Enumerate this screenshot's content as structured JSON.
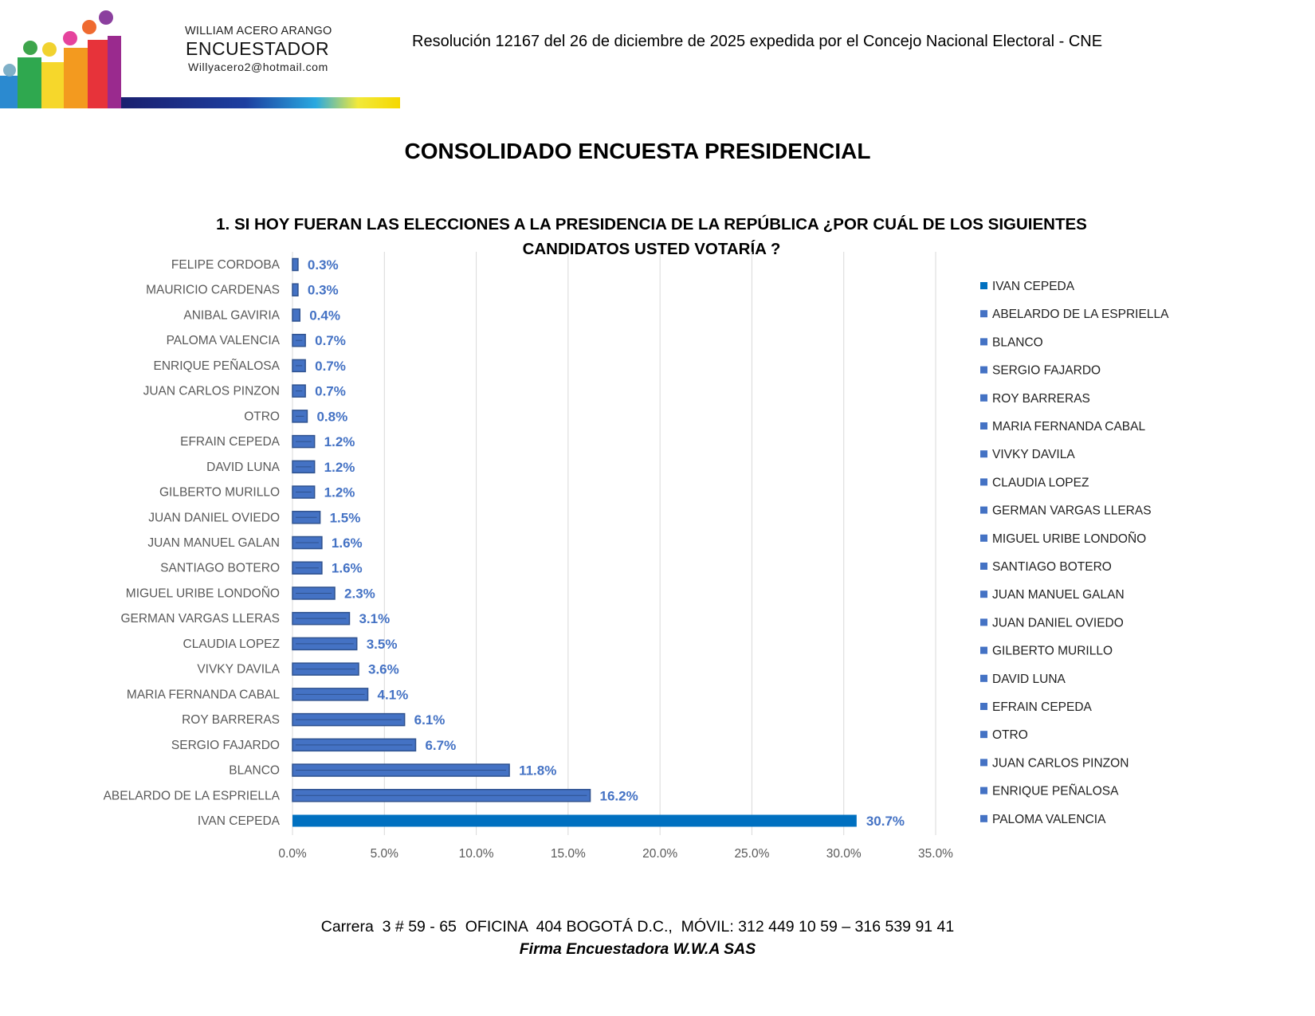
{
  "header": {
    "logo": {
      "name": "WILLIAM ACERO ARANGO",
      "title": "ENCUESTADOR",
      "email": "Willyacero2@hotmail.com"
    },
    "resolution": "Resolución 12167 del 26 de diciembre de 2025 expedida por el Concejo Nacional Electoral - CNE"
  },
  "main_title": "CONSOLIDADO ENCUESTA PRESIDENCIAL",
  "chart_data": {
    "type": "bar",
    "orientation": "horizontal",
    "title": "1. SI HOY FUERAN LAS ELECCIONES A LA PRESIDENCIA DE LA REPÚBLICA ¿POR CUÁL DE LOS SIGUIENTES CANDIDATOS USTED VOTARÍA ?",
    "categories": [
      "IVAN CEPEDA",
      "ABELARDO DE LA ESPRIELLA",
      "BLANCO",
      "SERGIO FAJARDO",
      "ROY BARRERAS",
      "MARIA FERNANDA CABAL",
      "VIVKY DAVILA",
      "CLAUDIA LOPEZ",
      "GERMAN VARGAS LLERAS",
      "MIGUEL URIBE LONDOÑO",
      "SANTIAGO BOTERO",
      "JUAN MANUEL GALAN",
      "JUAN DANIEL OVIEDO",
      "GILBERTO MURILLO",
      "DAVID LUNA",
      "EFRAIN CEPEDA",
      "OTRO",
      "JUAN CARLOS PINZON",
      "ENRIQUE PEÑALOSA",
      "PALOMA VALENCIA",
      "ANIBAL GAVIRIA",
      "MAURICIO CARDENAS",
      "FELIPE CORDOBA"
    ],
    "values": [
      30.7,
      16.2,
      11.8,
      6.7,
      6.1,
      4.1,
      3.6,
      3.5,
      3.1,
      2.3,
      1.6,
      1.6,
      1.5,
      1.2,
      1.2,
      1.2,
      0.8,
      0.7,
      0.7,
      0.7,
      0.4,
      0.3,
      0.3
    ],
    "data_labels": [
      "30.7%",
      "16.2%",
      "11.8%",
      "6.7%",
      "6.1%",
      "4.1%",
      "3.6%",
      "3.5%",
      "3.1%",
      "2.3%",
      "1.6%",
      "1.6%",
      "1.5%",
      "1.2%",
      "1.2%",
      "1.2%",
      "0.8%",
      "0.7%",
      "0.7%",
      "0.7%",
      "0.4%",
      "0.3%",
      "0.3%"
    ],
    "xlim": [
      0,
      35
    ],
    "x_ticks": [
      "0.0%",
      "5.0%",
      "10.0%",
      "15.0%",
      "20.0%",
      "25.0%",
      "30.0%",
      "35.0%"
    ],
    "grid": true,
    "legend_placement": "right",
    "legend": [
      "IVAN CEPEDA",
      "ABELARDO DE LA ESPRIELLA",
      "BLANCO",
      "SERGIO FAJARDO",
      "ROY BARRERAS",
      "MARIA FERNANDA CABAL",
      "VIVKY DAVILA",
      "CLAUDIA LOPEZ",
      "GERMAN VARGAS LLERAS",
      "MIGUEL URIBE LONDOÑO",
      "SANTIAGO BOTERO",
      "JUAN MANUEL GALAN",
      "JUAN DANIEL OVIEDO",
      "GILBERTO MURILLO",
      "DAVID LUNA",
      "EFRAIN CEPEDA",
      "OTRO",
      "JUAN CARLOS PINZON",
      "ENRIQUE PEÑALOSA",
      "PALOMA VALENCIA"
    ],
    "colors": {
      "highlight": "#0070C0",
      "bar": "#4472C4",
      "bar_edge": "#2F528F",
      "label": "#4472C4",
      "grid": "#D9D9D9"
    }
  },
  "footer": {
    "address": "Carrera  3 # 59 - 65  OFICINA  404 BOGOTÁ D.C.,  MÓVIL: 312 449 10 59 – 316 539 91 41",
    "firm": "Firma Encuestadora W.W.A SAS"
  }
}
